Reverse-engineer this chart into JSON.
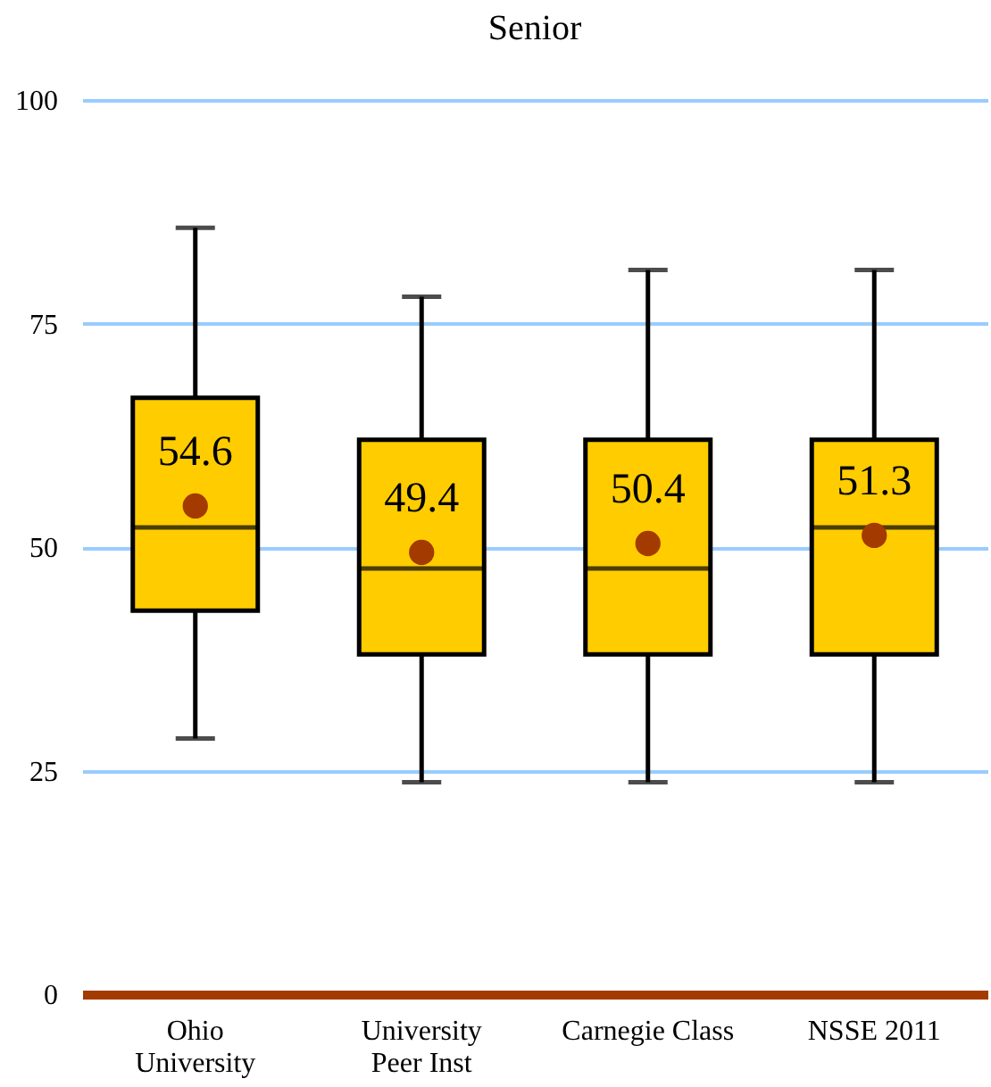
{
  "chart_data": {
    "type": "box",
    "title": "Senior",
    "categories": [
      "Ohio University",
      "University Peer Inst",
      "Carnegie Class",
      "NSSE 2011"
    ],
    "boxes": [
      {
        "low": 28.6,
        "q1": 42.9,
        "median": 52.2,
        "q3": 66.7,
        "high": 85.7
      },
      {
        "low": 23.7,
        "q1": 38,
        "median": 47.6,
        "q3": 62,
        "high": 78
      },
      {
        "low": 23.7,
        "q1": 38,
        "median": 47.6,
        "q3": 62,
        "high": 81
      },
      {
        "low": 23.7,
        "q1": 38,
        "median": 52.2,
        "q3": 62,
        "high": 81
      }
    ],
    "color": "#ffcc00",
    "series": [
      {
        "type": "scatter",
        "x": [
          "Ohio University",
          "University Peer Inst",
          "Carnegie Class",
          "NSSE 2011"
        ],
        "values": [
          54.6,
          49.4,
          50.4,
          51.3
        ],
        "color": "#a33a00"
      }
    ],
    "data_labels": true,
    "ylim": [
      0,
      100
    ],
    "yticks": [
      0,
      25,
      50,
      75,
      100
    ],
    "grid": "y",
    "marker": "circle"
  }
}
